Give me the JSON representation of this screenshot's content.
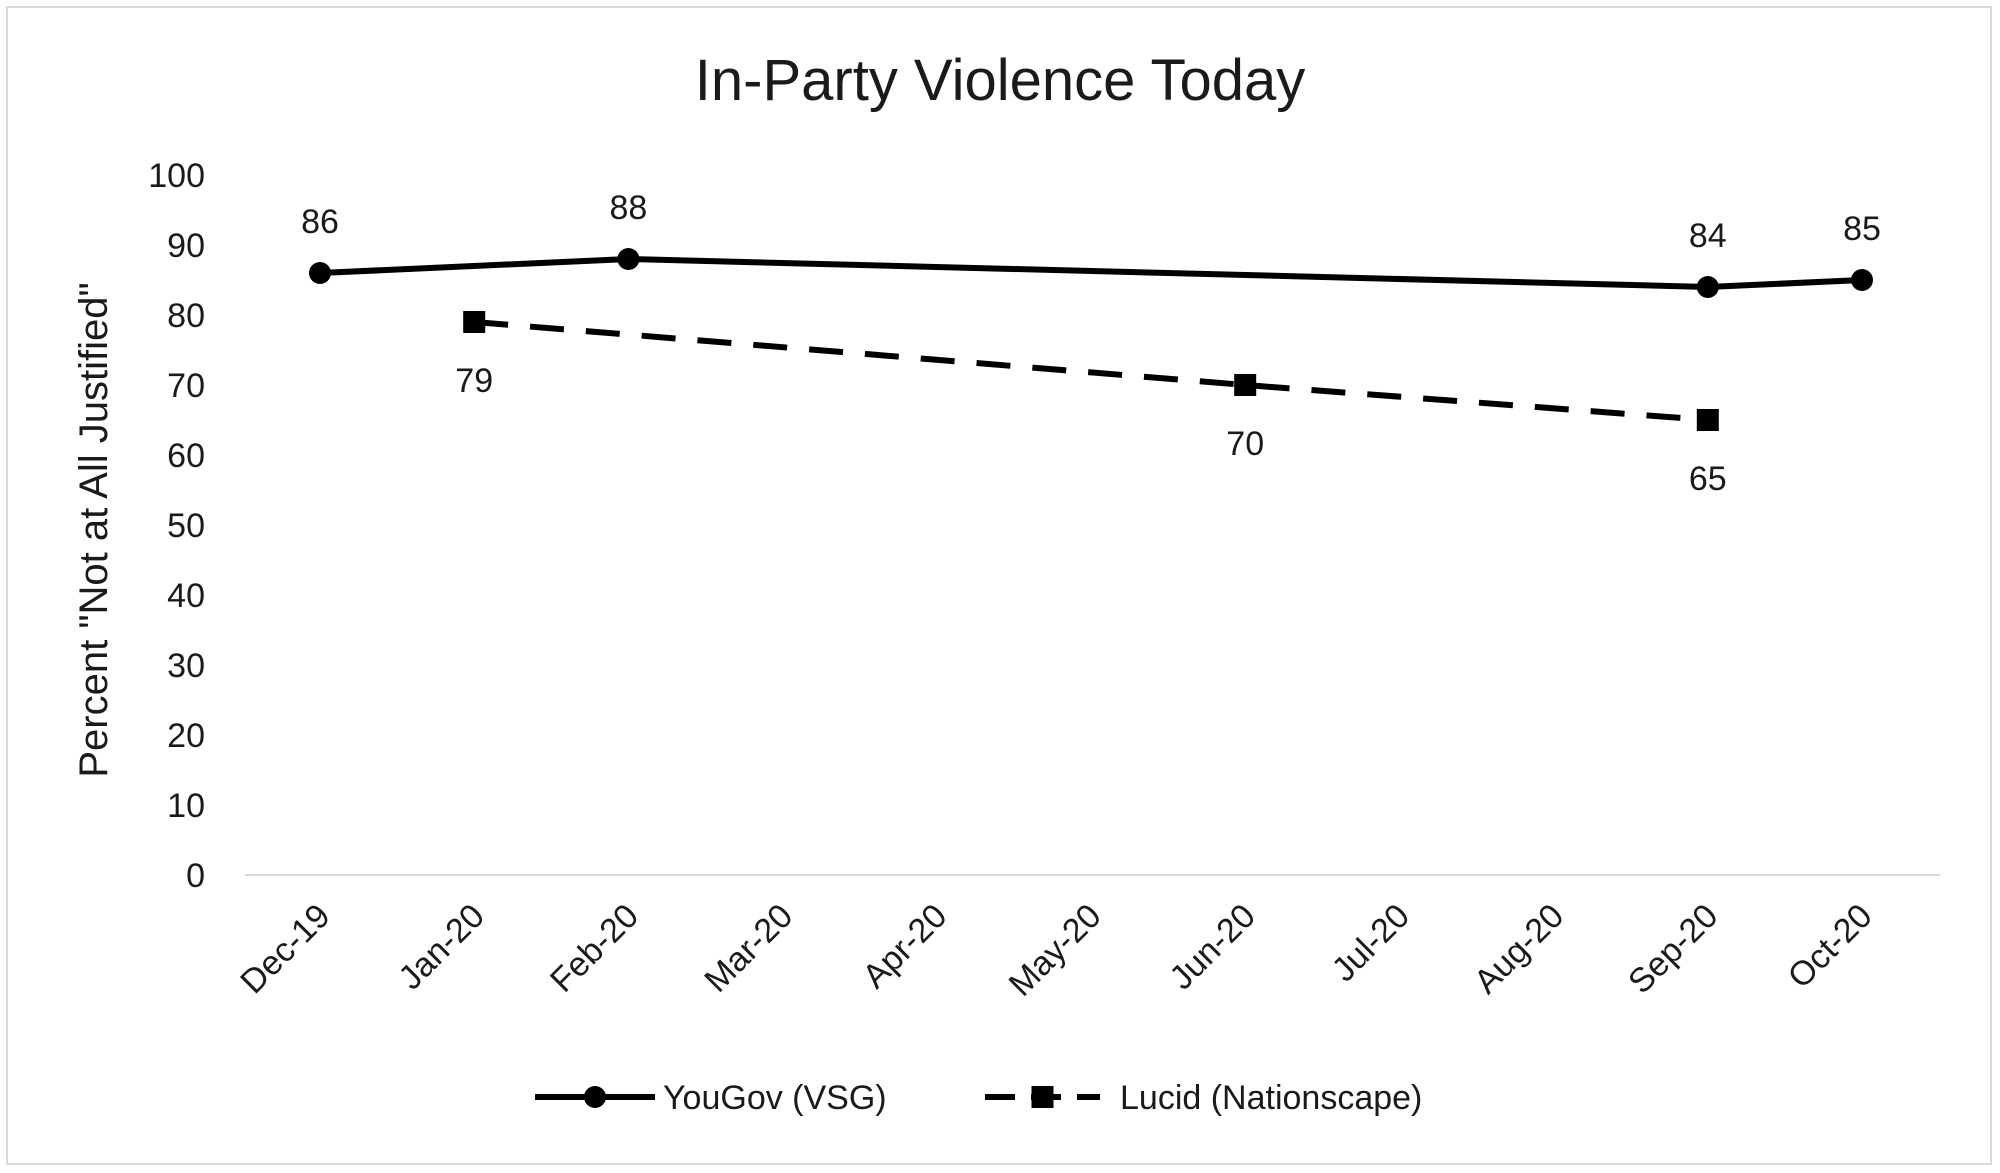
{
  "chart_data": {
    "type": "line",
    "title": "In-Party Violence Today",
    "ylabel": "Percent \"Not at All Justified\"",
    "xlabel": "",
    "ylim": [
      0,
      100
    ],
    "yticks": [
      0,
      10,
      20,
      30,
      40,
      50,
      60,
      70,
      80,
      90,
      100
    ],
    "categories": [
      "Dec-19",
      "Jan-20",
      "Feb-20",
      "Mar-20",
      "Apr-20",
      "May-20",
      "Jun-20",
      "Jul-20",
      "Aug-20",
      "Sep-20",
      "Oct-20"
    ],
    "grid": false,
    "legend_position": "bottom",
    "series": [
      {
        "name": "YouGov (VSG)",
        "style": "solid",
        "marker": "circle",
        "color": "#000000",
        "points": [
          {
            "x": "Dec-19",
            "y": 86
          },
          {
            "x": "Feb-20",
            "y": 88
          },
          {
            "x": "Sep-20",
            "y": 84
          },
          {
            "x": "Oct-20",
            "y": 85
          }
        ]
      },
      {
        "name": "Lucid (Nationscape)",
        "style": "dashed",
        "marker": "square",
        "color": "#000000",
        "points": [
          {
            "x": "Jan-20",
            "y": 79
          },
          {
            "x": "Jun-20",
            "y": 70
          },
          {
            "x": "Sep-20",
            "y": 65
          }
        ]
      }
    ]
  }
}
